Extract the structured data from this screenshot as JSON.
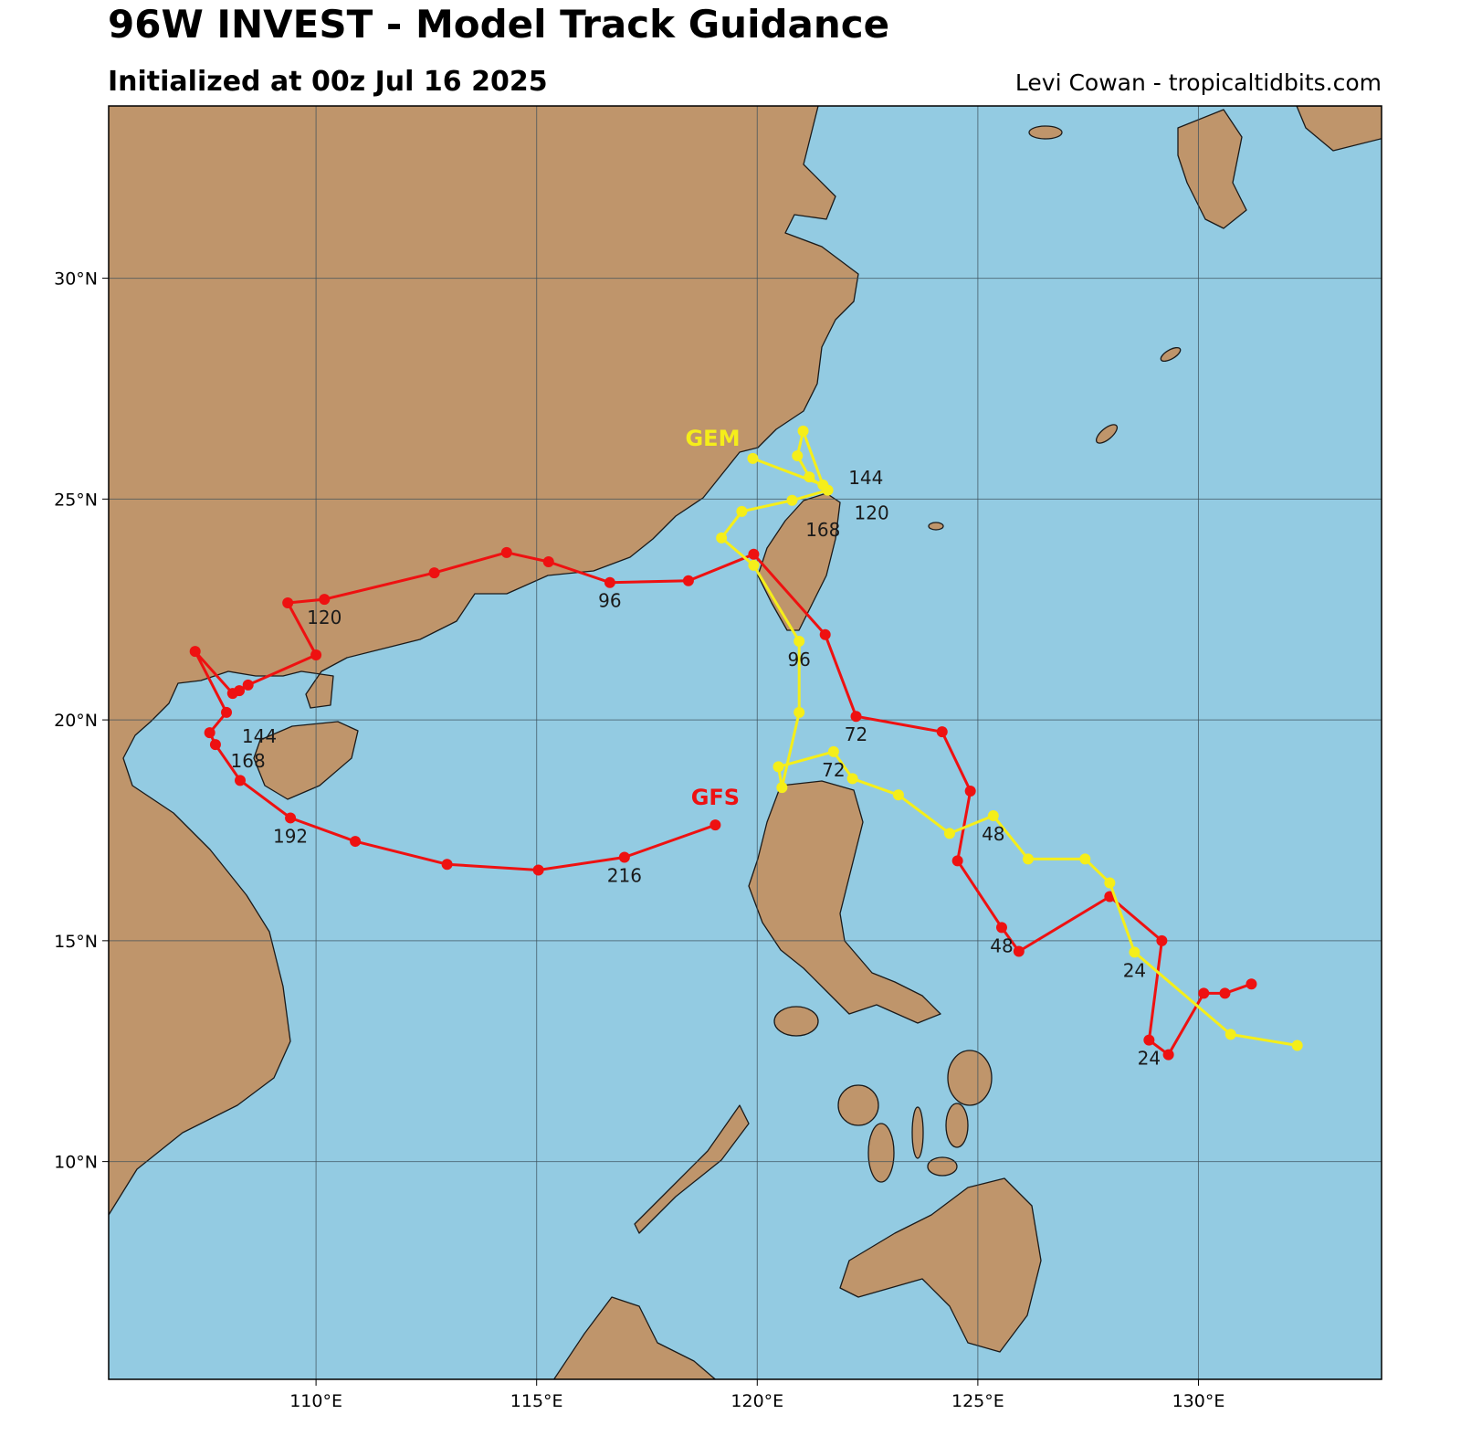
{
  "title": "96W INVEST - Model Track Guidance",
  "subtitle": "Initialized at 00z Jul 16 2025",
  "credit": "Levi Cowan - tropicaltidbits.com",
  "chart_data": {
    "type": "map",
    "projection": "plate-carree",
    "extent": {
      "lon": [
        105.3,
        134.15
      ],
      "lat": [
        5.07,
        33.9
      ]
    },
    "grid": true,
    "colors": {
      "land": "#bf956b",
      "ocean": "#93cbe2",
      "coast": "#1a1a1a",
      "grid": "#3a4f5a"
    },
    "lon_ticks": [
      {
        "value": 110,
        "label": "110°E"
      },
      {
        "value": 115,
        "label": "115°E"
      },
      {
        "value": 120,
        "label": "120°E"
      },
      {
        "value": 125,
        "label": "125°E"
      },
      {
        "value": 130,
        "label": "130°E"
      }
    ],
    "lat_ticks": [
      {
        "value": 10,
        "label": "10°N"
      },
      {
        "value": 15,
        "label": "15°N"
      },
      {
        "value": 20,
        "label": "20°N"
      },
      {
        "value": 25,
        "label": "25°N"
      },
      {
        "value": 30,
        "label": "30°N"
      }
    ],
    "tracks": [
      {
        "name": "GFS",
        "color": "#ee1111",
        "points": [
          {
            "lon": 131.2,
            "lat": 14.02
          },
          {
            "lon": 130.6,
            "lat": 13.81
          },
          {
            "lon": 130.12,
            "lat": 13.81
          },
          {
            "lon": 129.32,
            "lat": 12.42
          },
          {
            "lon": 128.88,
            "lat": 12.75,
            "tau": "24"
          },
          {
            "lon": 129.17,
            "lat": 15.0
          },
          {
            "lon": 127.99,
            "lat": 16.0
          },
          {
            "lon": 125.93,
            "lat": 14.76
          },
          {
            "lon": 125.54,
            "lat": 15.3,
            "tau": "48"
          },
          {
            "lon": 124.54,
            "lat": 16.81
          },
          {
            "lon": 124.83,
            "lat": 18.39
          },
          {
            "lon": 124.19,
            "lat": 19.73
          },
          {
            "lon": 122.24,
            "lat": 20.08,
            "tau": "72"
          },
          {
            "lon": 121.54,
            "lat": 21.93
          },
          {
            "lon": 119.92,
            "lat": 23.75
          },
          {
            "lon": 118.44,
            "lat": 23.15
          },
          {
            "lon": 116.66,
            "lat": 23.11,
            "tau": "96"
          },
          {
            "lon": 115.27,
            "lat": 23.58
          },
          {
            "lon": 114.32,
            "lat": 23.79
          },
          {
            "lon": 112.68,
            "lat": 23.33
          },
          {
            "lon": 110.19,
            "lat": 22.73,
            "tau": "120"
          },
          {
            "lon": 109.36,
            "lat": 22.65
          },
          {
            "lon": 110.0,
            "lat": 21.47
          },
          {
            "lon": 108.46,
            "lat": 20.79
          },
          {
            "lon": 108.26,
            "lat": 20.66
          },
          {
            "lon": 108.11,
            "lat": 20.6
          },
          {
            "lon": 107.26,
            "lat": 21.55
          },
          {
            "lon": 107.97,
            "lat": 20.17,
            "tau": "144"
          },
          {
            "lon": 107.59,
            "lat": 19.71,
            "tau": "168"
          },
          {
            "lon": 107.72,
            "lat": 19.44
          },
          {
            "lon": 108.28,
            "lat": 18.63
          },
          {
            "lon": 109.42,
            "lat": 17.78,
            "tau": "192"
          },
          {
            "lon": 110.89,
            "lat": 17.25
          },
          {
            "lon": 112.97,
            "lat": 16.73
          },
          {
            "lon": 115.04,
            "lat": 16.6
          },
          {
            "lon": 116.99,
            "lat": 16.89,
            "tau": "216"
          },
          {
            "lon": 119.05,
            "lat": 17.62
          }
        ]
      },
      {
        "name": "GEM",
        "color": "#f5ee1a",
        "points": [
          {
            "lon": 132.24,
            "lat": 12.63
          },
          {
            "lon": 130.73,
            "lat": 12.88
          },
          {
            "lon": 128.55,
            "lat": 14.74,
            "tau": "24"
          },
          {
            "lon": 127.99,
            "lat": 16.31
          },
          {
            "lon": 127.43,
            "lat": 16.85
          },
          {
            "lon": 126.14,
            "lat": 16.85
          },
          {
            "lon": 125.35,
            "lat": 17.83,
            "tau": "48"
          },
          {
            "lon": 124.36,
            "lat": 17.43
          },
          {
            "lon": 123.2,
            "lat": 18.3
          },
          {
            "lon": 122.16,
            "lat": 18.67
          },
          {
            "lon": 121.73,
            "lat": 19.28,
            "tau": "72"
          },
          {
            "lon": 120.48,
            "lat": 18.94
          },
          {
            "lon": 120.56,
            "lat": 18.47
          },
          {
            "lon": 120.95,
            "lat": 20.17
          },
          {
            "lon": 120.95,
            "lat": 21.78,
            "tau": "96"
          },
          {
            "lon": 119.92,
            "lat": 23.5
          },
          {
            "lon": 119.19,
            "lat": 24.12
          },
          {
            "lon": 119.65,
            "lat": 24.72
          },
          {
            "lon": 120.79,
            "lat": 24.97
          },
          {
            "lon": 121.6,
            "lat": 25.2,
            "tau": "120"
          },
          {
            "lon": 121.18,
            "lat": 25.5,
            "tau": "144"
          },
          {
            "lon": 120.91,
            "lat": 25.98
          },
          {
            "lon": 121.04,
            "lat": 26.54
          },
          {
            "lon": 121.49,
            "lat": 25.32,
            "tau": "168"
          },
          {
            "lon": 119.9,
            "lat": 25.92
          }
        ]
      }
    ]
  }
}
